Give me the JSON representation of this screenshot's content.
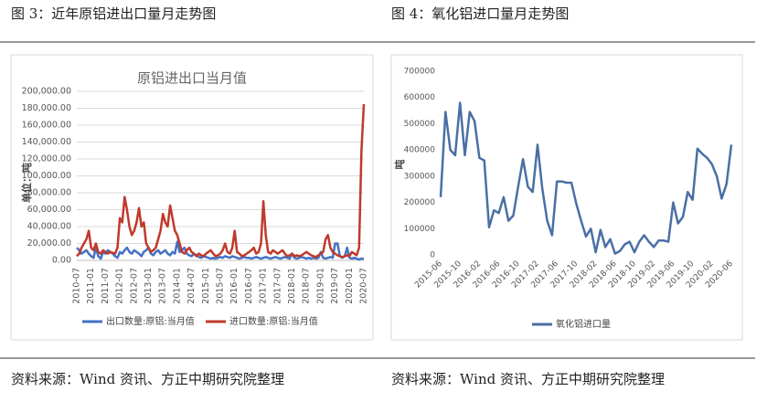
{
  "captions": [
    "图 3：近年原铝进出口量月走势图",
    "图 4：氧化铝进口量月走势图"
  ],
  "sources": [
    "资料来源：Wind 资讯、方正中期研究院整理",
    "资料来源：Wind 资讯、方正中期研究院整理"
  ],
  "chart_data": [
    {
      "type": "line",
      "title": "原铝进出口当月值",
      "y_label": "单位：吨",
      "grid": true,
      "legend": "bottom",
      "categories": [
        "2010-07",
        null,
        null,
        null,
        null,
        null,
        "2011-01",
        null,
        null,
        null,
        null,
        null,
        "2011-07",
        null,
        null,
        null,
        null,
        null,
        "2012-01",
        null,
        null,
        null,
        null,
        null,
        "2012-07",
        null,
        null,
        null,
        null,
        null,
        "2013-01",
        null,
        null,
        null,
        null,
        null,
        "2013-07",
        null,
        null,
        null,
        null,
        null,
        "2014-01",
        null,
        null,
        null,
        null,
        null,
        "2014-07",
        null,
        null,
        null,
        null,
        null,
        "2015-01",
        null,
        null,
        null,
        null,
        null,
        "2015-07",
        null,
        null,
        null,
        null,
        null,
        "2016-01",
        null,
        null,
        null,
        null,
        null,
        "2016-07",
        null,
        null,
        null,
        null,
        null,
        "2017-01",
        null,
        null,
        null,
        null,
        null,
        "2017-07",
        null,
        null,
        null,
        null,
        null,
        "2018-01",
        null,
        null,
        null,
        null,
        null,
        "2018-07",
        null,
        null,
        null,
        null,
        null,
        "2019-01",
        null,
        null,
        null,
        null,
        null,
        "2019-07",
        null,
        null,
        null,
        null,
        null,
        "2020-01",
        null,
        null,
        null,
        null,
        null,
        "2020-07"
      ],
      "series": [
        {
          "name": "出口数量:原铝:当月值",
          "color": "#4472c4",
          "values": [
            15000,
            12000,
            8000,
            10000,
            12000,
            8000,
            5000,
            3000,
            15000,
            5000,
            2000,
            10000,
            8000,
            12000,
            10000,
            8000,
            5000,
            3000,
            10000,
            8000,
            12000,
            15000,
            10000,
            8000,
            12000,
            10000,
            8000,
            5000,
            10000,
            12000,
            15000,
            8000,
            6000,
            10000,
            12000,
            8000,
            10000,
            12000,
            8000,
            6000,
            10000,
            8000,
            22000,
            10000,
            12000,
            15000,
            8000,
            6000,
            5000,
            8000,
            6000,
            4000,
            3000,
            5000,
            4000,
            3000,
            2000,
            3000,
            2000,
            3000,
            4000,
            3000,
            5000,
            4000,
            3000,
            5000,
            4000,
            3000,
            2000,
            3000,
            4000,
            3000,
            3000,
            2000,
            3000,
            4000,
            3000,
            2000,
            3000,
            4000,
            3000,
            2000,
            3000,
            4000,
            3000,
            2000,
            3000,
            4000,
            3000,
            2000,
            8000,
            3000,
            2000,
            3000,
            4000,
            3000,
            2000,
            3000,
            2000,
            3000,
            2000,
            3000,
            10000,
            3000,
            2000,
            3000,
            4000,
            3000,
            20000,
            20000,
            5000,
            3000,
            5000,
            15000,
            3000,
            2000,
            3000,
            2000,
            1000,
            2000,
            2000
          ]
        },
        {
          "name": "进口数量:原铝:当月值",
          "color": "#c0392b",
          "values": [
            5000,
            8000,
            15000,
            20000,
            25000,
            35000,
            15000,
            12000,
            20000,
            10000,
            8000,
            12000,
            10000,
            8000,
            10000,
            9000,
            8000,
            15000,
            50000,
            45000,
            75000,
            60000,
            40000,
            30000,
            35000,
            45000,
            62000,
            40000,
            45000,
            20000,
            15000,
            10000,
            12000,
            15000,
            25000,
            35000,
            55000,
            45000,
            40000,
            65000,
            50000,
            35000,
            30000,
            20000,
            10000,
            8000,
            12000,
            15000,
            10000,
            8000,
            5000,
            8000,
            6000,
            5000,
            8000,
            10000,
            12000,
            8000,
            5000,
            6000,
            8000,
            12000,
            20000,
            10000,
            8000,
            15000,
            35000,
            10000,
            8000,
            5000,
            6000,
            8000,
            10000,
            12000,
            15000,
            8000,
            10000,
            20000,
            70000,
            30000,
            10000,
            8000,
            12000,
            10000,
            8000,
            10000,
            12000,
            8000,
            5000,
            6000,
            8000,
            5000,
            6000,
            5000,
            6000,
            8000,
            10000,
            8000,
            6000,
            5000,
            4000,
            6000,
            8000,
            10000,
            25000,
            30000,
            15000,
            10000,
            8000,
            6000,
            5000,
            4000,
            5000,
            6000,
            5000,
            10000,
            8000,
            6000,
            15000,
            130000,
            185000
          ]
        }
      ],
      "ylim": [
        0,
        200000
      ],
      "yticks": [
        {
          "value": 0,
          "label": "0.00"
        },
        {
          "value": 20000,
          "label": "20,000.00"
        },
        {
          "value": 40000,
          "label": "40,000.00"
        },
        {
          "value": 60000,
          "label": "60,000.00"
        },
        {
          "value": 80000,
          "label": "80,000.00"
        },
        {
          "value": 100000,
          "label": "100,000.00"
        },
        {
          "value": 120000,
          "label": "120,000.00"
        },
        {
          "value": 140000,
          "label": "140,000.00"
        },
        {
          "value": 160000,
          "label": "160,000.00"
        },
        {
          "value": 180000,
          "label": "180,000.00"
        },
        {
          "value": 200000,
          "label": "200,000.00"
        }
      ]
    },
    {
      "type": "line",
      "y_label": "吨",
      "grid": false,
      "legend": "bottom",
      "categories": [
        "2015-06",
        null,
        null,
        null,
        "2015-10",
        null,
        null,
        null,
        "2016-02",
        null,
        null,
        null,
        "2016-06",
        null,
        null,
        null,
        "2016-10",
        null,
        null,
        null,
        "2017-02",
        null,
        null,
        null,
        "2017-06",
        null,
        null,
        null,
        "2017-10",
        null,
        null,
        null,
        "2018-02",
        null,
        null,
        null,
        "2018-06",
        null,
        null,
        null,
        "2018-10",
        null,
        null,
        null,
        "2019-02",
        null,
        null,
        null,
        "2019-06",
        null,
        null,
        null,
        "2019-10",
        null,
        null,
        null,
        "2020-02",
        null,
        null,
        null,
        "2020-06"
      ],
      "series": [
        {
          "name": "氧化铝进口量",
          "color": "#4a6fa5",
          "values": [
            220000,
            545000,
            400000,
            380000,
            580000,
            380000,
            545000,
            510000,
            370000,
            360000,
            105000,
            170000,
            160000,
            220000,
            130000,
            150000,
            260000,
            365000,
            260000,
            240000,
            420000,
            250000,
            130000,
            75000,
            280000,
            280000,
            275000,
            275000,
            195000,
            130000,
            70000,
            100000,
            10000,
            95000,
            30000,
            60000,
            5000,
            15000,
            40000,
            50000,
            10000,
            50000,
            75000,
            50000,
            30000,
            55000,
            55000,
            50000,
            200000,
            120000,
            145000,
            240000,
            210000,
            405000,
            385000,
            370000,
            345000,
            300000,
            215000,
            270000,
            420000
          ]
        }
      ],
      "ylim": [
        0,
        700000
      ],
      "yticks": [
        0,
        100000,
        200000,
        300000,
        400000,
        500000,
        600000,
        700000
      ]
    }
  ]
}
